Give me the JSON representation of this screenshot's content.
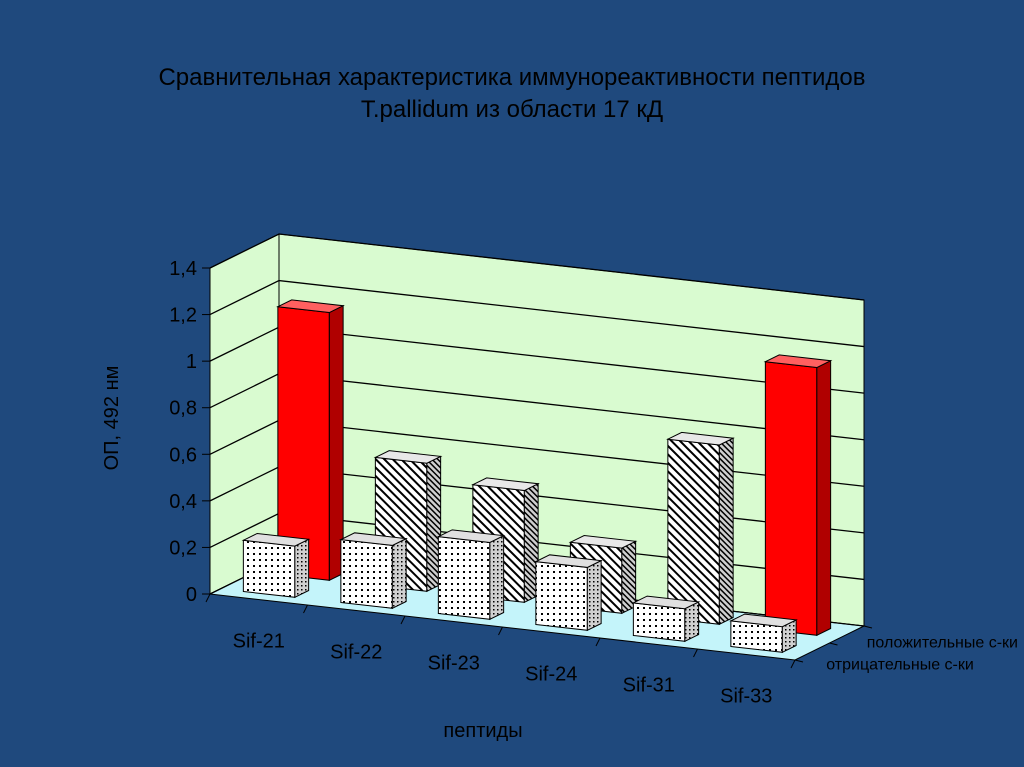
{
  "slide": {
    "title_line1": "Сравнительная характеристика иммунореактивности пептидов",
    "title_line2": "T.pallidum из области 17 кД"
  },
  "chart_data": {
    "type": "bar",
    "subtype": "3d-clustered-depth",
    "title": "",
    "xlabel": "пептиды",
    "ylabel": "ОП, 492 нм",
    "ylim": [
      0,
      1.4
    ],
    "yticks": [
      "0",
      "0,2",
      "0,4",
      "0,6",
      "0,8",
      "1",
      "1,2",
      "1,4"
    ],
    "grid": true,
    "categories": [
      "Sif-21",
      "Sif-22",
      "Sif-23",
      "Sif-24",
      "Sif-31",
      "Sif-33"
    ],
    "series": [
      {
        "name": "положительные с-ки",
        "values": [
          1.15,
          0.55,
          0.48,
          0.28,
          0.77,
          1.15
        ]
      },
      {
        "name": "отрицательные с-ки",
        "values": [
          0.22,
          0.27,
          0.33,
          0.27,
          0.14,
          0.11
        ]
      }
    ],
    "colors": {
      "background": "#1f497d",
      "back_wall": "#d9fbd0",
      "floor": "#c4f4fa",
      "highlight_bar": "#ff0000",
      "pattern_bar": "#ffffff",
      "grid": "#000000"
    },
    "highlighted_categories": [
      "Sif-21",
      "Sif-33"
    ]
  }
}
